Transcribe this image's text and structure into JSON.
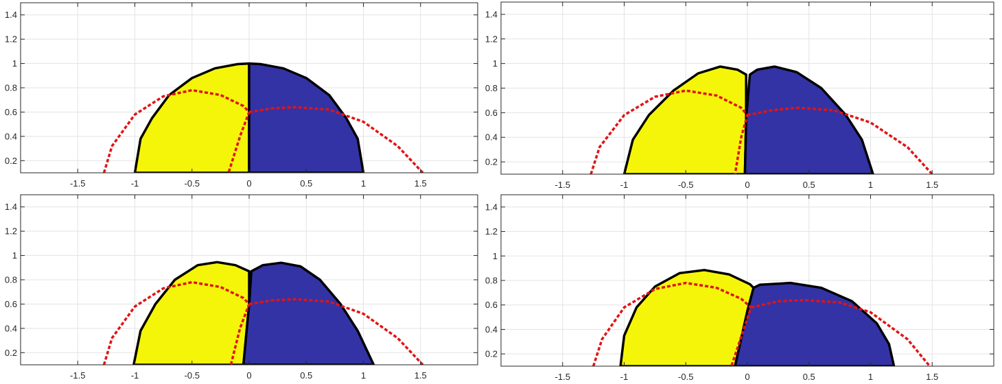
{
  "figure": {
    "panel_count": 4,
    "colors": {
      "left_region": "#f5f50a",
      "right_region": "#3333a6",
      "outline": "#000000",
      "dashed": "#e01414",
      "grid": "#e3e3e3",
      "axis": "#262626"
    }
  },
  "chart_data": [
    {
      "type": "area",
      "xlim": [
        -2,
        2
      ],
      "ylim": [
        0.1,
        1.5
      ],
      "xticks": [
        -1.5,
        -1,
        -0.5,
        0,
        0.5,
        1,
        1.5
      ],
      "xtick_labels": [
        "-1.5",
        "-1",
        "-0.5",
        "0",
        "0.5",
        "1",
        "1.5"
      ],
      "yticks": [
        0.2,
        0.4,
        0.6,
        0.8,
        1.0,
        1.2,
        1.4
      ],
      "ytick_labels": [
        "0.2",
        "0.4",
        "0.6",
        "0.8",
        "1",
        "1.2",
        "1.4"
      ],
      "grid": true,
      "shapes": [
        {
          "name": "left",
          "color": "yellow",
          "points": [
            [
              -1.0,
              0.1
            ],
            [
              -0.95,
              0.38
            ],
            [
              -0.85,
              0.55
            ],
            [
              -0.7,
              0.74
            ],
            [
              -0.5,
              0.88
            ],
            [
              -0.3,
              0.96
            ],
            [
              -0.1,
              0.995
            ],
            [
              0.0,
              1.0
            ],
            [
              0.0,
              0.1
            ]
          ]
        },
        {
          "name": "right",
          "color": "blue",
          "points": [
            [
              0.0,
              1.0
            ],
            [
              0.0,
              0.1
            ],
            [
              1.0,
              0.1
            ],
            [
              0.95,
              0.38
            ],
            [
              0.85,
              0.55
            ],
            [
              0.7,
              0.74
            ],
            [
              0.5,
              0.88
            ],
            [
              0.3,
              0.96
            ],
            [
              0.1,
              0.995
            ]
          ]
        }
      ],
      "dashed_curves": [
        {
          "points": [
            [
              -1.27,
              0.1
            ],
            [
              -1.2,
              0.32
            ],
            [
              -1.0,
              0.58
            ],
            [
              -0.75,
              0.73
            ],
            [
              -0.5,
              0.78
            ],
            [
              -0.25,
              0.74
            ],
            [
              -0.05,
              0.65
            ],
            [
              0.0,
              0.6
            ],
            [
              -0.08,
              0.4
            ],
            [
              -0.18,
              0.1
            ]
          ]
        },
        {
          "points": [
            [
              0.0,
              0.6
            ],
            [
              0.2,
              0.63
            ],
            [
              0.4,
              0.64
            ],
            [
              0.7,
              0.62
            ],
            [
              1.0,
              0.52
            ],
            [
              1.3,
              0.32
            ],
            [
              1.52,
              0.1
            ]
          ]
        }
      ]
    },
    {
      "type": "area",
      "xlim": [
        -2,
        2
      ],
      "ylim": [
        0.1,
        1.5
      ],
      "xticks": [
        -1.5,
        -1,
        -0.5,
        0,
        0.5,
        1,
        1.5
      ],
      "xtick_labels": [
        "-1.5",
        "-1",
        "-0.5",
        "0",
        "0.5",
        "1",
        "1.5"
      ],
      "yticks": [
        0.2,
        0.4,
        0.6,
        0.8,
        1.0,
        1.2,
        1.4
      ],
      "ytick_labels": [
        "0.2",
        "0.4",
        "0.6",
        "0.8",
        "1",
        "1.2",
        "1.4"
      ],
      "grid": true,
      "shapes": [
        {
          "name": "left",
          "color": "yellow",
          "points": [
            [
              -1.0,
              0.1
            ],
            [
              -0.93,
              0.38
            ],
            [
              -0.8,
              0.58
            ],
            [
              -0.6,
              0.78
            ],
            [
              -0.4,
              0.92
            ],
            [
              -0.22,
              0.975
            ],
            [
              -0.08,
              0.95
            ],
            [
              -0.01,
              0.91
            ],
            [
              -0.01,
              0.55
            ],
            [
              -0.02,
              0.1
            ]
          ]
        },
        {
          "name": "right",
          "color": "blue",
          "points": [
            [
              0.02,
              0.91
            ],
            [
              0.08,
              0.95
            ],
            [
              0.22,
              0.975
            ],
            [
              0.4,
              0.93
            ],
            [
              0.6,
              0.8
            ],
            [
              0.8,
              0.58
            ],
            [
              0.93,
              0.38
            ],
            [
              1.02,
              0.1
            ],
            [
              -0.02,
              0.1
            ],
            [
              -0.01,
              0.55
            ]
          ]
        }
      ],
      "dashed_curves": [
        {
          "points": [
            [
              -1.27,
              0.1
            ],
            [
              -1.2,
              0.32
            ],
            [
              -1.0,
              0.58
            ],
            [
              -0.75,
              0.73
            ],
            [
              -0.5,
              0.78
            ],
            [
              -0.25,
              0.74
            ],
            [
              -0.05,
              0.64
            ],
            [
              0.0,
              0.58
            ],
            [
              -0.05,
              0.4
            ],
            [
              -0.1,
              0.1
            ]
          ]
        },
        {
          "points": [
            [
              0.0,
              0.58
            ],
            [
              0.2,
              0.62
            ],
            [
              0.4,
              0.64
            ],
            [
              0.7,
              0.62
            ],
            [
              1.0,
              0.52
            ],
            [
              1.3,
              0.32
            ],
            [
              1.5,
              0.1
            ]
          ]
        }
      ]
    },
    {
      "type": "area",
      "xlim": [
        -2,
        2
      ],
      "ylim": [
        0.1,
        1.5
      ],
      "xticks": [
        -1.5,
        -1,
        -0.5,
        0,
        0.5,
        1,
        1.5
      ],
      "xtick_labels": [
        "-1.5",
        "-1",
        "-0.5",
        "0",
        "0.5",
        "1",
        "1.5"
      ],
      "yticks": [
        0.2,
        0.4,
        0.6,
        0.8,
        1.0,
        1.2,
        1.4
      ],
      "ytick_labels": [
        "0.2",
        "0.4",
        "0.6",
        "0.8",
        "1",
        "1.2",
        "1.4"
      ],
      "grid": true,
      "shapes": [
        {
          "name": "left",
          "color": "yellow",
          "points": [
            [
              -1.01,
              0.1
            ],
            [
              -0.95,
              0.38
            ],
            [
              -0.82,
              0.6
            ],
            [
              -0.65,
              0.8
            ],
            [
              -0.45,
              0.92
            ],
            [
              -0.28,
              0.945
            ],
            [
              -0.12,
              0.92
            ],
            [
              0.0,
              0.87
            ],
            [
              0.0,
              0.6
            ],
            [
              -0.05,
              0.1
            ]
          ]
        },
        {
          "name": "right",
          "color": "blue",
          "points": [
            [
              0.02,
              0.87
            ],
            [
              0.12,
              0.92
            ],
            [
              0.28,
              0.94
            ],
            [
              0.45,
              0.91
            ],
            [
              0.62,
              0.8
            ],
            [
              0.8,
              0.6
            ],
            [
              0.95,
              0.38
            ],
            [
              1.09,
              0.1
            ],
            [
              -0.05,
              0.1
            ],
            [
              0.0,
              0.6
            ]
          ]
        }
      ],
      "dashed_curves": [
        {
          "points": [
            [
              -1.27,
              0.1
            ],
            [
              -1.2,
              0.32
            ],
            [
              -1.0,
              0.58
            ],
            [
              -0.75,
              0.73
            ],
            [
              -0.5,
              0.78
            ],
            [
              -0.25,
              0.74
            ],
            [
              -0.05,
              0.65
            ],
            [
              0.0,
              0.6
            ],
            [
              -0.08,
              0.4
            ],
            [
              -0.16,
              0.1
            ]
          ]
        },
        {
          "points": [
            [
              0.0,
              0.6
            ],
            [
              0.2,
              0.63
            ],
            [
              0.4,
              0.64
            ],
            [
              0.7,
              0.62
            ],
            [
              1.0,
              0.52
            ],
            [
              1.3,
              0.32
            ],
            [
              1.52,
              0.1
            ]
          ]
        }
      ]
    },
    {
      "type": "area",
      "xlim": [
        -2,
        2
      ],
      "ylim": [
        0.1,
        1.5
      ],
      "xticks": [
        -1.5,
        -1,
        -0.5,
        0,
        0.5,
        1,
        1.5
      ],
      "xtick_labels": [
        "-1.5",
        "-1",
        "-0.5",
        "0",
        "0.5",
        "1",
        "1.5"
      ],
      "yticks": [
        0.2,
        0.4,
        0.6,
        0.8,
        1.0,
        1.2,
        1.4
      ],
      "ytick_labels": [
        "0.2",
        "0.4",
        "0.6",
        "0.8",
        "1",
        "1.2",
        "1.4"
      ],
      "grid": true,
      "shapes": [
        {
          "name": "left",
          "color": "yellow",
          "points": [
            [
              -1.03,
              0.1
            ],
            [
              -1.0,
              0.35
            ],
            [
              -0.9,
              0.58
            ],
            [
              -0.75,
              0.75
            ],
            [
              -0.55,
              0.86
            ],
            [
              -0.35,
              0.885
            ],
            [
              -0.15,
              0.85
            ],
            [
              0.02,
              0.77
            ],
            [
              0.05,
              0.74
            ],
            [
              0.0,
              0.55
            ],
            [
              -0.1,
              0.1
            ]
          ]
        },
        {
          "name": "right",
          "color": "blue",
          "points": [
            [
              0.05,
              0.74
            ],
            [
              0.1,
              0.765
            ],
            [
              0.35,
              0.78
            ],
            [
              0.6,
              0.74
            ],
            [
              0.85,
              0.63
            ],
            [
              1.05,
              0.45
            ],
            [
              1.15,
              0.28
            ],
            [
              1.19,
              0.1
            ],
            [
              -0.1,
              0.1
            ],
            [
              0.0,
              0.55
            ]
          ]
        }
      ],
      "dashed_curves": [
        {
          "points": [
            [
              -1.25,
              0.1
            ],
            [
              -1.18,
              0.32
            ],
            [
              -1.0,
              0.58
            ],
            [
              -0.75,
              0.73
            ],
            [
              -0.5,
              0.78
            ],
            [
              -0.25,
              0.74
            ],
            [
              -0.05,
              0.65
            ],
            [
              0.03,
              0.58
            ],
            [
              -0.03,
              0.4
            ],
            [
              -0.13,
              0.1
            ]
          ]
        },
        {
          "points": [
            [
              0.03,
              0.58
            ],
            [
              0.25,
              0.63
            ],
            [
              0.45,
              0.64
            ],
            [
              0.75,
              0.62
            ],
            [
              1.0,
              0.54
            ],
            [
              1.3,
              0.32
            ],
            [
              1.48,
              0.1
            ]
          ]
        }
      ]
    }
  ]
}
